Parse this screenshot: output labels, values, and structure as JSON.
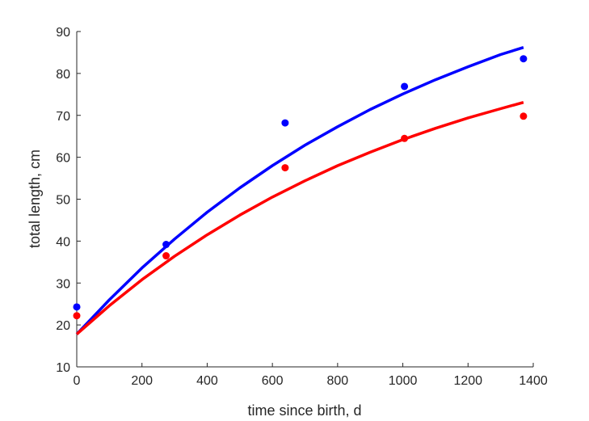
{
  "chart_data": {
    "type": "scatter",
    "xlabel": "time since birth, d",
    "ylabel": "total length, cm",
    "xlim": [
      0,
      1400
    ],
    "ylim": [
      10,
      90
    ],
    "xticks": [
      0,
      200,
      400,
      600,
      800,
      1000,
      1200,
      1400
    ],
    "yticks": [
      10,
      20,
      30,
      40,
      50,
      60,
      70,
      80,
      90
    ],
    "grid": false,
    "legend": "none",
    "series": [
      {
        "color": "#0000ff",
        "marker": "dot",
        "points": [
          {
            "x": 0,
            "y": 24.3
          },
          {
            "x": 274,
            "y": 39.2
          },
          {
            "x": 639,
            "y": 68.2
          },
          {
            "x": 1005,
            "y": 76.9
          },
          {
            "x": 1370,
            "y": 83.5
          }
        ],
        "fit": [
          {
            "x": 0,
            "y": 17.8
          },
          {
            "x": 100,
            "y": 26.0
          },
          {
            "x": 200,
            "y": 33.6
          },
          {
            "x": 300,
            "y": 40.5
          },
          {
            "x": 400,
            "y": 46.9
          },
          {
            "x": 500,
            "y": 52.7
          },
          {
            "x": 600,
            "y": 58.0
          },
          {
            "x": 700,
            "y": 62.9
          },
          {
            "x": 800,
            "y": 67.3
          },
          {
            "x": 900,
            "y": 71.4
          },
          {
            "x": 1000,
            "y": 75.1
          },
          {
            "x": 1100,
            "y": 78.5
          },
          {
            "x": 1200,
            "y": 81.6
          },
          {
            "x": 1300,
            "y": 84.5
          },
          {
            "x": 1370,
            "y": 86.2
          }
        ]
      },
      {
        "color": "#ff0000",
        "marker": "dot",
        "points": [
          {
            "x": 0,
            "y": 22.2
          },
          {
            "x": 274,
            "y": 36.5
          },
          {
            "x": 639,
            "y": 57.5
          },
          {
            "x": 1005,
            "y": 64.5
          },
          {
            "x": 1370,
            "y": 69.8
          }
        ],
        "fit": [
          {
            "x": 0,
            "y": 17.8
          },
          {
            "x": 100,
            "y": 24.6
          },
          {
            "x": 200,
            "y": 30.8
          },
          {
            "x": 300,
            "y": 36.4
          },
          {
            "x": 400,
            "y": 41.5
          },
          {
            "x": 500,
            "y": 46.2
          },
          {
            "x": 600,
            "y": 50.5
          },
          {
            "x": 700,
            "y": 54.4
          },
          {
            "x": 800,
            "y": 58.0
          },
          {
            "x": 900,
            "y": 61.2
          },
          {
            "x": 1000,
            "y": 64.2
          },
          {
            "x": 1100,
            "y": 66.9
          },
          {
            "x": 1200,
            "y": 69.4
          },
          {
            "x": 1300,
            "y": 71.6
          },
          {
            "x": 1370,
            "y": 73.1
          }
        ]
      }
    ]
  }
}
